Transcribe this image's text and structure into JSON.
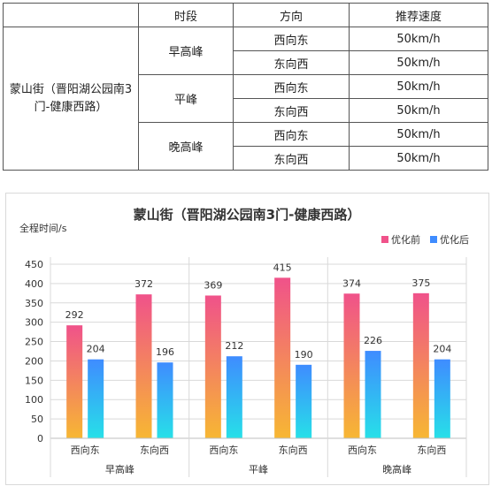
{
  "table": {
    "header": {
      "col1": "",
      "col2": "时段",
      "col3": "方向",
      "col4": "推荐速度"
    },
    "road": "蒙山街（晋阳湖公园南3门-健康西路）",
    "periods": [
      {
        "name": "早高峰",
        "rows": [
          {
            "direction": "西向东",
            "speed": "50km/h"
          },
          {
            "direction": "东向西",
            "speed": "50km/h"
          }
        ]
      },
      {
        "name": "平峰",
        "rows": [
          {
            "direction": "西向东",
            "speed": "50km/h"
          },
          {
            "direction": "东向西",
            "speed": "50km/h"
          }
        ]
      },
      {
        "name": "晚高峰",
        "rows": [
          {
            "direction": "西向东",
            "speed": "50km/h"
          },
          {
            "direction": "东向西",
            "speed": "50km/h"
          }
        ]
      }
    ]
  },
  "colors": {
    "before_top": "#f0528a",
    "before_bottom": "#f7b733",
    "after_top": "#3f8cff",
    "after_bottom": "#27e0e8",
    "grid": "#d9d9d9"
  },
  "chart_data": {
    "type": "bar",
    "title": "蒙山街（晋阳湖公园南3门-健康西路）",
    "ylabel": "全程时间/s",
    "xlabel": "",
    "ylim": [
      0,
      450
    ],
    "yticks": [
      0,
      50,
      100,
      150,
      200,
      250,
      300,
      350,
      400,
      450
    ],
    "categories": [
      "西向东",
      "东向西",
      "西向东",
      "东向西",
      "西向东",
      "东向西"
    ],
    "groups": [
      {
        "label": "早高峰",
        "span": 2
      },
      {
        "label": "平峰",
        "span": 2
      },
      {
        "label": "晚高峰",
        "span": 2
      }
    ],
    "series": [
      {
        "name": "优化前",
        "values": [
          292,
          372,
          369,
          415,
          374,
          375
        ]
      },
      {
        "name": "优化后",
        "values": [
          204,
          196,
          212,
          190,
          226,
          204
        ]
      }
    ],
    "legend": "top-right",
    "grid": true
  }
}
